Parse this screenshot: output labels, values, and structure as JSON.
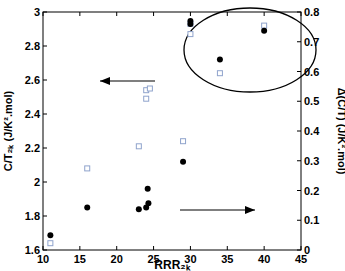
{
  "chart_data": {
    "type": "scatter",
    "x_label": "RRR₂ₖ",
    "y_label": "C/T₂ₖ (J/K².mol)",
    "y2_label": "Δ(C/T) (J/K².mol)",
    "xlim": [
      10,
      45
    ],
    "xticks": [
      10,
      15,
      20,
      25,
      30,
      35,
      40,
      45
    ],
    "ylim": [
      1.6,
      3
    ],
    "yticks": [
      1.6,
      1.8,
      2,
      2.2,
      2.4,
      2.6,
      2.8,
      3
    ],
    "y2lim": [
      0,
      0.8
    ],
    "y2ticks": [
      0,
      0.1,
      0.2,
      0.3,
      0.4,
      0.5,
      0.6,
      0.7,
      0.8
    ],
    "series": [
      {
        "color": "#8fa3cc",
        "marker": "square",
        "x": [
          11,
          16,
          23,
          24,
          24,
          24.5,
          29,
          30,
          30,
          34,
          40
        ],
        "values": [
          1.64,
          2.08,
          2.21,
          2.49,
          2.54,
          2.55,
          2.24,
          2.87,
          2.93,
          2.64,
          2.92
        ]
      },
      {
        "color": "#000000",
        "marker": "circle",
        "axis": "y2",
        "x": [
          11,
          16,
          23,
          24,
          24.3,
          24.2,
          29,
          30,
          30,
          34,
          40
        ],
        "values": [
          0.05,
          0.143,
          0.137,
          0.143,
          0.157,
          0.206,
          0.297,
          0.77,
          0.76,
          0.64,
          0.737
        ]
      }
    ]
  }
}
